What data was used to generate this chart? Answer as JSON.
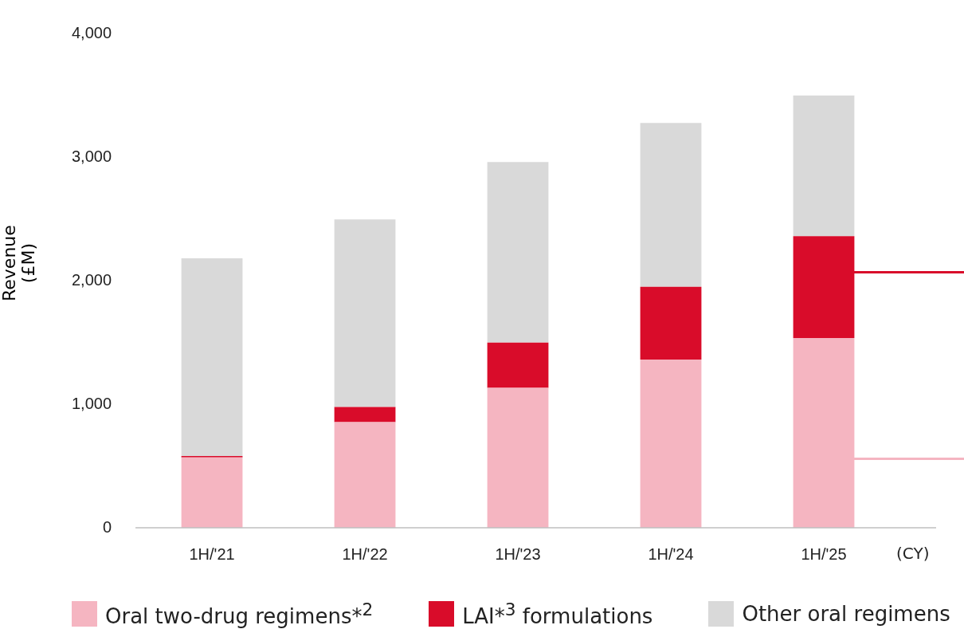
{
  "chart_data": {
    "type": "bar",
    "stacked": true,
    "ylabel": "Revenue\n(£M)",
    "categories": [
      "1H/'21",
      "1H/'22",
      "1H/'23",
      "1H/'24",
      "1H/'25"
    ],
    "series": [
      {
        "name": "Oral two-drug regimens*$^{2}$",
        "color": "#f5b5c1",
        "values": [
          570,
          855,
          1133,
          1362,
          1536
        ]
      },
      {
        "name": "LAI*$^{3}$ formulations",
        "color": "#d90c2a",
        "values": [
          10,
          123,
          365,
          588,
          823
        ]
      },
      {
        "name": "Other oral regimens",
        "color": "#d9d9d9",
        "values": [
          1600,
          1517,
          1462,
          1326,
          1139
        ]
      }
    ],
    "ylim": [
      0,
      4000
    ],
    "yticks": [
      {
        "value": 0,
        "label": "0"
      },
      {
        "value": 1000,
        "label": "1,000"
      },
      {
        "value": 2000,
        "label": "2,000"
      },
      {
        "value": 3000,
        "label": "3,000"
      },
      {
        "value": 4000,
        "label": "4,000"
      }
    ],
    "grid": false,
    "legend": "bottom",
    "annotations": [
      "(CY)"
    ]
  }
}
